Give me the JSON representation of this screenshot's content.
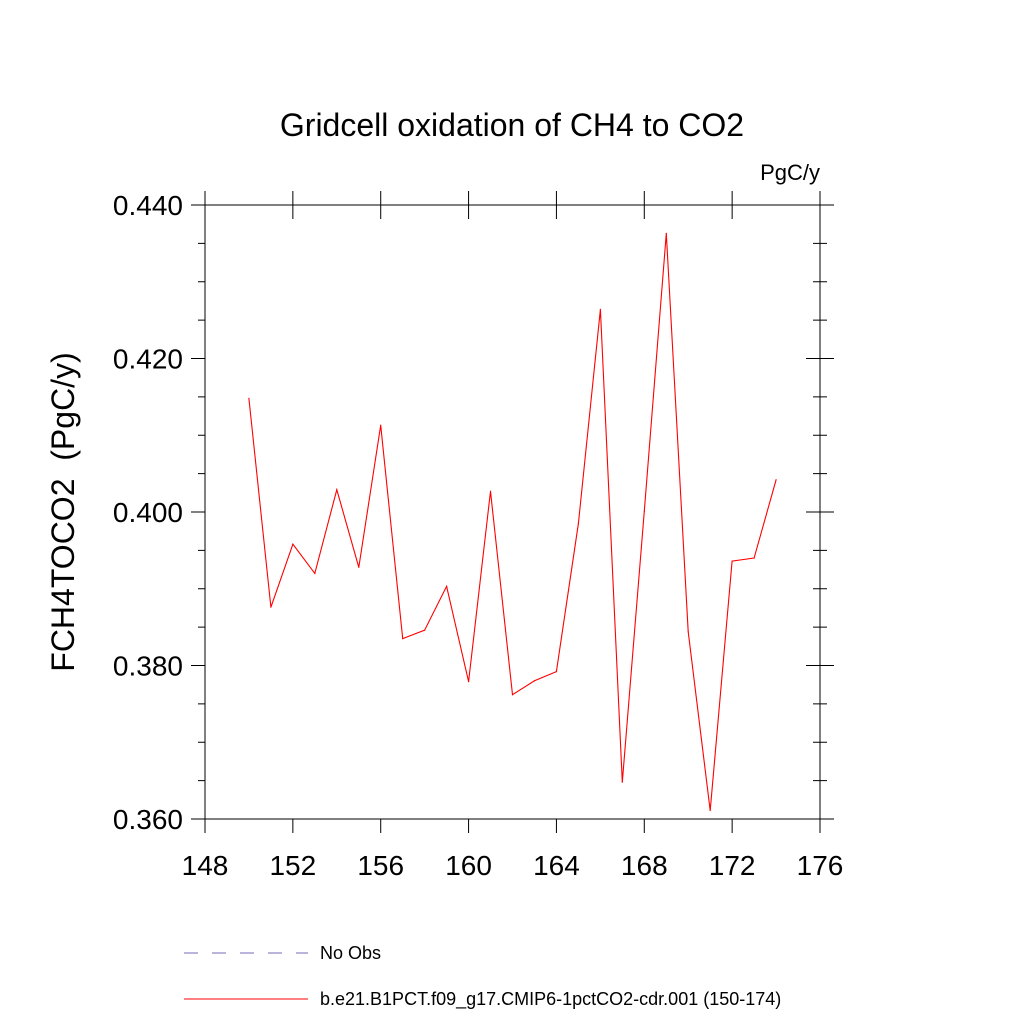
{
  "chart_data": {
    "type": "line",
    "title": "Gridcell oxidation of CH4 to CO2",
    "units_label": "PgC/y",
    "ylabel": "FCH4TOCO2  (PgC/y)",
    "xlabel": "",
    "xlim": [
      148,
      176
    ],
    "ylim": [
      0.36,
      0.44
    ],
    "x_ticks": [
      148,
      152,
      156,
      160,
      164,
      168,
      172,
      176
    ],
    "x_tick_labels": [
      "148",
      "152",
      "156",
      "160",
      "164",
      "168",
      "172",
      "176"
    ],
    "y_ticks": [
      0.36,
      0.38,
      0.4,
      0.42,
      0.44
    ],
    "y_tick_labels": [
      "0.360",
      "0.380",
      "0.400",
      "0.420",
      "0.440"
    ],
    "x_minor_step": 1,
    "y_minor_step": 0.005,
    "grid": false,
    "legend_position": "bottom",
    "series": [
      {
        "name": "b.e21.B1PCT.f09_g17.CMIP6-1pctCO2-cdr.001 (150-174)",
        "color": "#ff0000",
        "dash": "solid",
        "x": [
          150,
          151,
          152,
          153,
          154,
          155,
          156,
          157,
          158,
          159,
          160,
          161,
          162,
          163,
          164,
          165,
          166,
          167,
          168,
          169,
          170,
          171,
          172,
          173,
          174
        ],
        "values": [
          0.4148,
          0.3876,
          0.3958,
          0.392,
          0.4029,
          0.3928,
          0.4113,
          0.3835,
          0.3846,
          0.3903,
          0.3779,
          0.4027,
          0.3762,
          0.378,
          0.3792,
          0.3985,
          0.4264,
          0.3648,
          0.4001,
          0.4363,
          0.3844,
          0.3611,
          0.3936,
          0.394,
          0.4042
        ]
      }
    ],
    "legend": [
      {
        "label": "No Obs",
        "color": "#7a68b8",
        "dash": "dashed"
      },
      {
        "label": "b.e21.B1PCT.f09_g17.CMIP6-1pctCO2-cdr.001 (150-174)",
        "color": "#ff0000",
        "dash": "solid"
      }
    ]
  }
}
